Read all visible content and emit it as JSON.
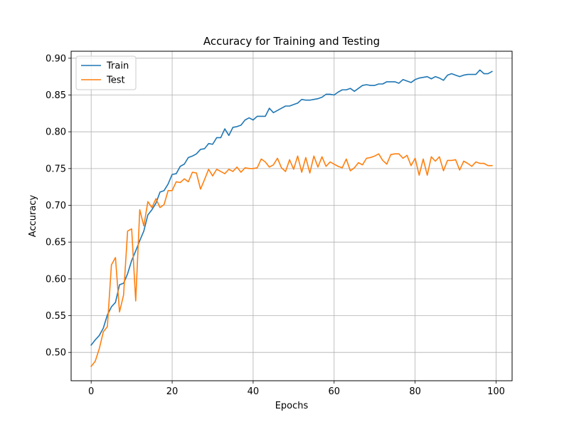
{
  "chart_data": {
    "type": "line",
    "title": "Accuracy for Training and Testing",
    "xlabel": "Epochs",
    "ylabel": "Accuracy",
    "xlim": [
      -4.95,
      103.95
    ],
    "ylim": [
      0.4615,
      0.9095
    ],
    "xticks": [
      0,
      20,
      40,
      60,
      80,
      100
    ],
    "yticks": [
      0.5,
      0.55,
      0.6,
      0.65,
      0.7,
      0.75,
      0.8,
      0.85,
      0.9
    ],
    "xtick_labels": [
      "0",
      "20",
      "40",
      "60",
      "80",
      "100"
    ],
    "ytick_labels": [
      "0.50",
      "0.55",
      "0.60",
      "0.65",
      "0.70",
      "0.75",
      "0.80",
      "0.85",
      "0.90"
    ],
    "grid": true,
    "legend_position": "top-left",
    "series": [
      {
        "name": "Train",
        "color": "#1f77b4",
        "x_start": 0,
        "values": [
          0.51,
          0.517,
          0.523,
          0.533,
          0.551,
          0.562,
          0.568,
          0.592,
          0.594,
          0.607,
          0.625,
          0.638,
          0.652,
          0.665,
          0.687,
          0.694,
          0.703,
          0.718,
          0.72,
          0.729,
          0.742,
          0.743,
          0.753,
          0.756,
          0.765,
          0.767,
          0.77,
          0.776,
          0.777,
          0.784,
          0.783,
          0.792,
          0.792,
          0.804,
          0.795,
          0.806,
          0.807,
          0.809,
          0.816,
          0.819,
          0.816,
          0.821,
          0.821,
          0.821,
          0.832,
          0.826,
          0.829,
          0.832,
          0.835,
          0.835,
          0.837,
          0.839,
          0.844,
          0.843,
          0.843,
          0.844,
          0.845,
          0.847,
          0.851,
          0.851,
          0.85,
          0.854,
          0.857,
          0.857,
          0.859,
          0.855,
          0.859,
          0.863,
          0.864,
          0.863,
          0.863,
          0.865,
          0.865,
          0.868,
          0.868,
          0.868,
          0.866,
          0.871,
          0.869,
          0.867,
          0.871,
          0.873,
          0.874,
          0.875,
          0.872,
          0.875,
          0.873,
          0.87,
          0.877,
          0.879,
          0.877,
          0.875,
          0.877,
          0.878,
          0.878,
          0.878,
          0.884,
          0.879,
          0.879,
          0.882
        ]
      },
      {
        "name": "Test",
        "color": "#ff7f0e",
        "x_start": 0,
        "values": [
          0.481,
          0.488,
          0.505,
          0.528,
          0.535,
          0.619,
          0.629,
          0.555,
          0.578,
          0.665,
          0.668,
          0.57,
          0.694,
          0.672,
          0.705,
          0.697,
          0.709,
          0.697,
          0.701,
          0.72,
          0.72,
          0.732,
          0.731,
          0.736,
          0.732,
          0.745,
          0.744,
          0.722,
          0.735,
          0.749,
          0.74,
          0.749,
          0.746,
          0.743,
          0.749,
          0.746,
          0.752,
          0.745,
          0.751,
          0.75,
          0.75,
          0.751,
          0.763,
          0.759,
          0.752,
          0.755,
          0.764,
          0.751,
          0.746,
          0.762,
          0.749,
          0.767,
          0.745,
          0.765,
          0.744,
          0.767,
          0.752,
          0.766,
          0.753,
          0.759,
          0.756,
          0.753,
          0.751,
          0.763,
          0.747,
          0.751,
          0.758,
          0.755,
          0.764,
          0.765,
          0.767,
          0.77,
          0.761,
          0.756,
          0.769,
          0.77,
          0.77,
          0.764,
          0.768,
          0.754,
          0.764,
          0.741,
          0.763,
          0.741,
          0.766,
          0.76,
          0.766,
          0.747,
          0.761,
          0.761,
          0.762,
          0.748,
          0.76,
          0.757,
          0.753,
          0.759,
          0.757,
          0.757,
          0.754,
          0.754
        ]
      }
    ]
  }
}
